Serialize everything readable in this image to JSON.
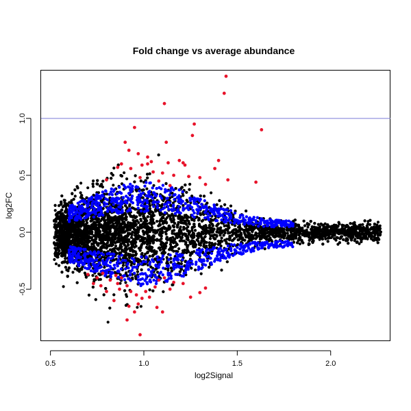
{
  "chart_data": {
    "type": "scatter",
    "title": "Fold change vs average abundance",
    "xlabel": "log2Signal",
    "ylabel": "log2FC",
    "xlim": [
      0.45,
      2.32
    ],
    "ylim": [
      -0.95,
      1.42
    ],
    "xticks": [
      {
        "value": 0.5,
        "label": "0.5"
      },
      {
        "value": 1.0,
        "label": "1.0"
      },
      {
        "value": 1.5,
        "label": "1.5"
      },
      {
        "value": 2.0,
        "label": "2.0"
      }
    ],
    "yticks": [
      {
        "value": -0.5,
        "label": "-0.5"
      },
      {
        "value": 0.0,
        "label": "0.0"
      },
      {
        "value": 0.5,
        "label": "0.5"
      },
      {
        "value": 1.0,
        "label": "1.0"
      }
    ],
    "reference_line": {
      "y": 1.0,
      "color": "#7b7bd6"
    },
    "grid": false,
    "colors": {
      "background": "#000000",
      "significant": "#0000ff",
      "top": "#e8132a"
    },
    "series": [
      {
        "color": "#e8132a",
        "points": [
          [
            1.44,
            1.37
          ],
          [
            1.43,
            1.22
          ],
          [
            1.11,
            1.13
          ],
          [
            1.27,
            0.95
          ],
          [
            0.95,
            0.92
          ],
          [
            1.63,
            0.9
          ],
          [
            1.26,
            0.85
          ],
          [
            0.9,
            0.79
          ],
          [
            1.12,
            0.79
          ],
          [
            0.92,
            0.72
          ],
          [
            0.97,
            0.69
          ],
          [
            1.02,
            0.66
          ],
          [
            1.04,
            0.62
          ],
          [
            1.13,
            0.61
          ],
          [
            1.19,
            0.63
          ],
          [
            1.21,
            0.61
          ],
          [
            1.4,
            0.63
          ],
          [
            0.88,
            0.6
          ],
          [
            0.99,
            0.59
          ],
          [
            1.02,
            0.6
          ],
          [
            1.22,
            0.59
          ],
          [
            0.86,
            0.57
          ],
          [
            0.93,
            0.56
          ],
          [
            1.38,
            0.56
          ],
          [
            1.05,
            0.53
          ],
          [
            1.1,
            0.52
          ],
          [
            1.16,
            0.5
          ],
          [
            1.24,
            0.49
          ],
          [
            1.3,
            0.48
          ],
          [
            1.45,
            0.46
          ],
          [
            1.6,
            0.44
          ],
          [
            0.8,
            0.46
          ],
          [
            0.98,
            0.48
          ],
          [
            1.08,
            0.45
          ],
          [
            1.33,
            0.42
          ],
          [
            1.14,
            0.41
          ],
          [
            0.7,
            -0.37
          ],
          [
            0.75,
            -0.4
          ],
          [
            0.78,
            -0.36
          ],
          [
            0.82,
            -0.42
          ],
          [
            0.86,
            -0.45
          ],
          [
            0.88,
            -0.4
          ],
          [
            0.91,
            -0.47
          ],
          [
            0.93,
            -0.52
          ],
          [
            0.96,
            -0.55
          ],
          [
            0.99,
            -0.58
          ],
          [
            1.03,
            -0.57
          ],
          [
            1.06,
            -0.48
          ],
          [
            1.08,
            -0.42
          ],
          [
            1.11,
            -0.4
          ],
          [
            1.16,
            -0.44
          ],
          [
            1.21,
            -0.45
          ],
          [
            1.3,
            -0.53
          ],
          [
            1.33,
            -0.49
          ],
          [
            0.84,
            -0.6
          ],
          [
            0.92,
            -0.65
          ],
          [
            0.95,
            -0.7
          ],
          [
            0.97,
            -0.63
          ],
          [
            1.07,
            -0.66
          ],
          [
            1.1,
            -0.7
          ],
          [
            0.91,
            -0.77
          ],
          [
            0.98,
            -0.9
          ],
          [
            0.8,
            -0.52
          ],
          [
            0.77,
            -0.47
          ],
          [
            0.87,
            -0.5
          ],
          [
            1.01,
            -0.52
          ],
          [
            1.14,
            -0.5
          ],
          [
            1.25,
            -0.57
          ],
          [
            0.73,
            -0.45
          ],
          [
            0.85,
            -0.38
          ]
        ]
      }
    ]
  }
}
